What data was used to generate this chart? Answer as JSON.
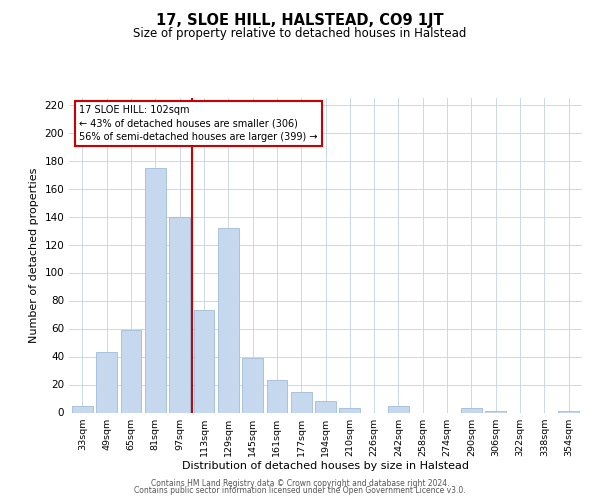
{
  "title": "17, SLOE HILL, HALSTEAD, CO9 1JT",
  "subtitle": "Size of property relative to detached houses in Halstead",
  "xlabel": "Distribution of detached houses by size in Halstead",
  "ylabel": "Number of detached properties",
  "categories": [
    "33sqm",
    "49sqm",
    "65sqm",
    "81sqm",
    "97sqm",
    "113sqm",
    "129sqm",
    "145sqm",
    "161sqm",
    "177sqm",
    "194sqm",
    "210sqm",
    "226sqm",
    "242sqm",
    "258sqm",
    "274sqm",
    "290sqm",
    "306sqm",
    "322sqm",
    "338sqm",
    "354sqm"
  ],
  "values": [
    5,
    43,
    59,
    175,
    140,
    73,
    132,
    39,
    23,
    15,
    8,
    3,
    0,
    5,
    0,
    0,
    3,
    1,
    0,
    0,
    1
  ],
  "bar_color": "#c5d8ed",
  "bar_edge_color": "#a0bcda",
  "vline_x_index": 4,
  "vline_color": "#cc0000",
  "annotation_line1": "17 SLOE HILL: 102sqm",
  "annotation_line2": "← 43% of detached houses are smaller (306)",
  "annotation_line3": "56% of semi-detached houses are larger (399) →",
  "ylim": [
    0,
    225
  ],
  "yticks": [
    0,
    20,
    40,
    60,
    80,
    100,
    120,
    140,
    160,
    180,
    200,
    220
  ],
  "footer_line1": "Contains HM Land Registry data © Crown copyright and database right 2024.",
  "footer_line2": "Contains public sector information licensed under the Open Government Licence v3.0.",
  "background_color": "#ffffff",
  "grid_color": "#c8d8e8"
}
